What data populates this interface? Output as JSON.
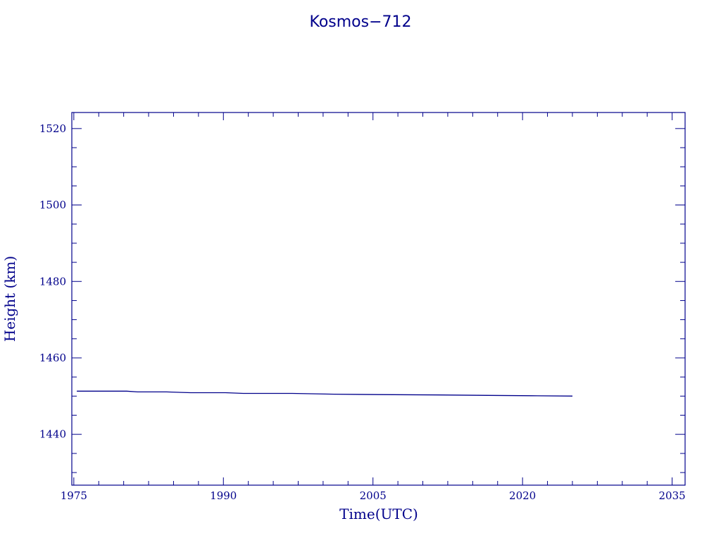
{
  "chart_data": {
    "type": "line",
    "title": "Kosmos−712",
    "xlabel": "Time(UTC)",
    "ylabel": "Height (km)",
    "xlim": [
      1974.8,
      2036.3
    ],
    "ylim": [
      1426.7,
      1524.2
    ],
    "x_ticks": [
      1975,
      1990,
      2005,
      2020,
      2035
    ],
    "x_tick_labels": [
      "1975",
      "1990",
      "2005",
      "2020",
      "2035"
    ],
    "y_ticks": [
      1440,
      1460,
      1480,
      1500,
      1520
    ],
    "y_tick_labels": [
      "1440",
      "1460",
      "1480",
      "1500",
      "1520"
    ],
    "x_minor_step": 2.5,
    "y_minor_step": 5,
    "grid": false,
    "color": "#00008B",
    "series": [
      {
        "x": [
          1975.3,
          1980.3,
          1981.4,
          1984.3,
          1986.7,
          1990.2,
          1992.0,
          1996.9,
          2001.1,
          2005.6,
          2011.5,
          2016.5,
          2020.9,
          2025.0
        ],
        "y": [
          1451.3,
          1451.3,
          1451.1,
          1451.1,
          1450.9,
          1450.9,
          1450.7,
          1450.7,
          1450.5,
          1450.4,
          1450.3,
          1450.2,
          1450.1,
          1450.0
        ]
      }
    ]
  }
}
